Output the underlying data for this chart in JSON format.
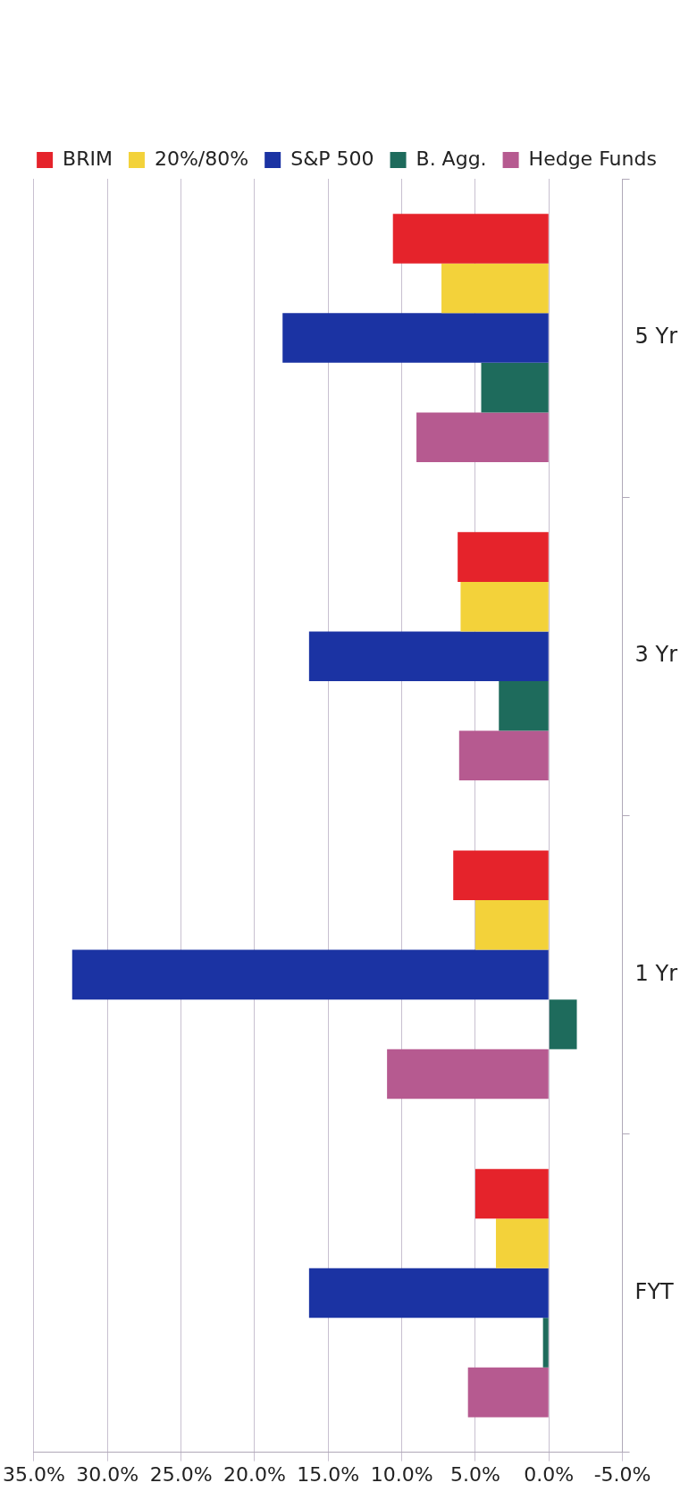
{
  "chart_data": {
    "type": "bar",
    "orientation": "horizontal",
    "categories": [
      "5 Yr",
      "3 Yr",
      "1 Yr",
      "FYT"
    ],
    "series": [
      {
        "name": "BRIM",
        "color": "#e5232b",
        "values": [
          10.6,
          6.2,
          6.5,
          5.0
        ]
      },
      {
        "name": "20%/80%",
        "color": "#f3d23a",
        "values": [
          7.3,
          6.0,
          5.0,
          3.6
        ]
      },
      {
        "name": "S&P 500",
        "color": "#1b33a3",
        "values": [
          18.1,
          16.3,
          32.4,
          16.3
        ]
      },
      {
        "name": "B. Agg.",
        "color": "#1e6b5c",
        "values": [
          4.6,
          3.4,
          -1.9,
          0.4
        ]
      },
      {
        "name": "Hedge Funds",
        "color": "#b65a90",
        "values": [
          9.0,
          6.1,
          11.0,
          5.5
        ]
      }
    ],
    "xlim": [
      35,
      -5
    ],
    "xticks": [
      {
        "value": 35,
        "label": "35.0%"
      },
      {
        "value": 30,
        "label": "30.0%"
      },
      {
        "value": 25,
        "label": "25.0%"
      },
      {
        "value": 20,
        "label": "20.0%"
      },
      {
        "value": 15,
        "label": "15.0%"
      },
      {
        "value": 10,
        "label": "10.0%"
      },
      {
        "value": 5,
        "label": "5.0%"
      },
      {
        "value": 0,
        "label": "0.0%"
      },
      {
        "value": -5,
        "label": "-5.0%"
      }
    ],
    "grid": "x",
    "legend": "top"
  }
}
